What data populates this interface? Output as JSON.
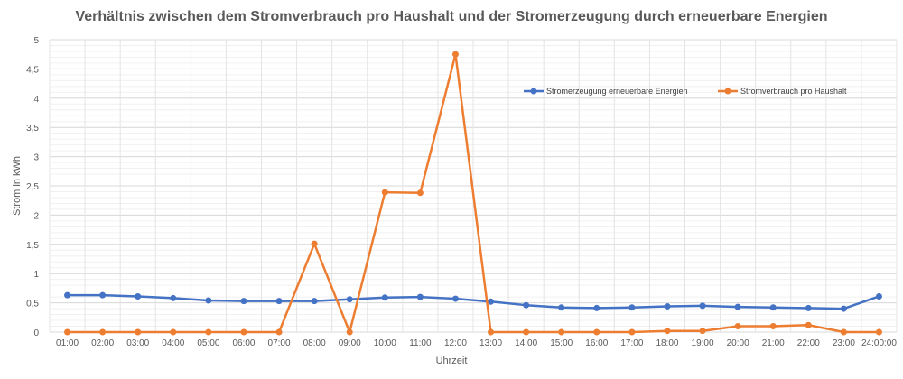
{
  "chart_data": {
    "type": "line",
    "title": "Verhältnis zwischen dem Stromverbrauch pro Haushalt und der Stromerzeugung durch erneuerbare Energien",
    "xlabel": "Uhrzeit",
    "ylabel": "Strom in kWh",
    "ylim": [
      0,
      5
    ],
    "yticks": [
      "0",
      "0,5",
      "1",
      "1,5",
      "2",
      "2,5",
      "3",
      "3,5",
      "4",
      "4,5",
      "5"
    ],
    "categories": [
      "01:00",
      "02:00",
      "03:00",
      "04:00",
      "05:00",
      "06:00",
      "07:00",
      "08:00",
      "09:00",
      "10:00",
      "11:00",
      "12:00",
      "13:00",
      "14:00",
      "15:00",
      "16:00",
      "17:00",
      "18:00",
      "19:00",
      "20:00",
      "21:00",
      "22:00",
      "23:00",
      "24:00:00"
    ],
    "grid": true,
    "legend_position": "top-right",
    "series": [
      {
        "name": "Stromerzeugung erneuerbare Energien",
        "color": "#4472C4",
        "values": [
          0.63,
          0.63,
          0.61,
          0.58,
          0.54,
          0.53,
          0.53,
          0.53,
          0.56,
          0.59,
          0.6,
          0.57,
          0.52,
          0.46,
          0.42,
          0.41,
          0.42,
          0.44,
          0.45,
          0.43,
          0.42,
          0.41,
          0.4,
          0.61
        ]
      },
      {
        "name": "Stromverbrauch pro Haushalt",
        "color": "#ED7D31",
        "values": [
          0,
          0,
          0,
          0,
          0,
          0,
          0,
          1.51,
          0,
          2.39,
          2.38,
          4.75,
          0,
          0,
          0,
          0,
          0,
          0.02,
          0.02,
          0.1,
          0.1,
          0.12,
          0,
          0
        ]
      }
    ]
  }
}
